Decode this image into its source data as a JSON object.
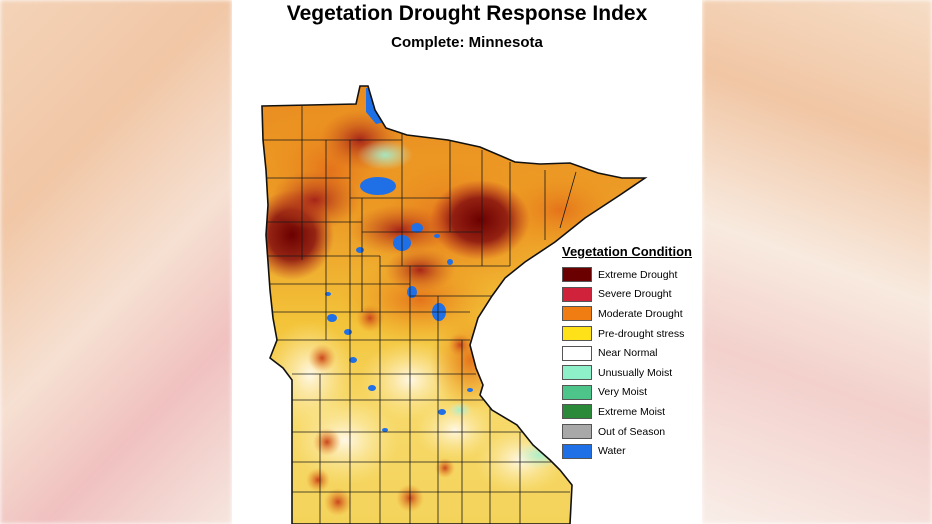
{
  "title": "Vegetation Drought Response Index",
  "subtitle": "Complete: Minnesota",
  "legend": {
    "title": "Vegetation Condition",
    "items": [
      {
        "label": "Extreme Drought",
        "color": "#6b0000"
      },
      {
        "label": "Severe Drought",
        "color": "#d0223a"
      },
      {
        "label": "Moderate Drought",
        "color": "#ef7d12"
      },
      {
        "label": "Pre-drought stress",
        "color": "#ffe11a"
      },
      {
        "label": "Near Normal",
        "color": "#ffffff"
      },
      {
        "label": "Unusually Moist",
        "color": "#8ef0c8"
      },
      {
        "label": "Very Moist",
        "color": "#4cc48a"
      },
      {
        "label": "Extreme Moist",
        "color": "#2a8a3a"
      },
      {
        "label": "Out of Season",
        "color": "#a8a8a8"
      },
      {
        "label": "Water",
        "color": "#1f6fe6"
      }
    ]
  },
  "map": {
    "region": "Minnesota",
    "colors": {
      "extreme": "#6b0000",
      "severe": "#b3261e",
      "moderate": "#e4701a",
      "predrought": "#f4c419",
      "near_normal": "#fff6d6",
      "moist": "#8ef0c8",
      "water": "#1f6fe6",
      "county_line": "#1a1a1a"
    }
  }
}
